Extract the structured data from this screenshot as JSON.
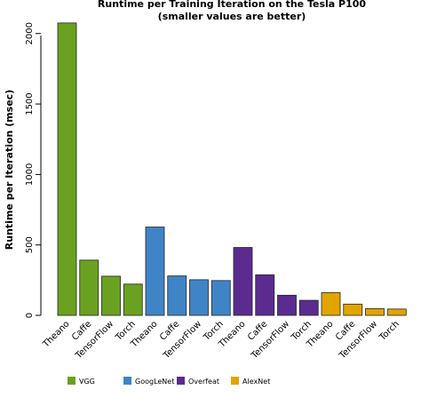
{
  "chart_data": {
    "type": "bar",
    "title": "Runtime per Training Iteration on the Tesla P100",
    "subtitle": "(smaller values are better)",
    "ylabel": "Runtime per Iteration (msec)",
    "xlabel": "",
    "ylim": [
      0,
      2100
    ],
    "yticks": [
      0,
      500,
      1000,
      1500,
      2000
    ],
    "grid": false,
    "legend_position": "bottom",
    "series": [
      {
        "name": "VGG",
        "color": "#6aa121",
        "categories": [
          "Theano",
          "Caffe",
          "TensorFlow",
          "Torch"
        ],
        "values": [
          2075,
          392,
          278,
          222
        ]
      },
      {
        "name": "GoogLeNet",
        "color": "#3f84c6",
        "categories": [
          "Theano",
          "Caffe",
          "TensorFlow",
          "Torch"
        ],
        "values": [
          627,
          280,
          253,
          247
        ]
      },
      {
        "name": "Overfeat",
        "color": "#5b2b90",
        "categories": [
          "Theano",
          "Caffe",
          "TensorFlow",
          "Torch"
        ],
        "values": [
          482,
          288,
          143,
          107
        ]
      },
      {
        "name": "AlexNet",
        "color": "#e1a500",
        "categories": [
          "Theano",
          "Caffe",
          "TensorFlow",
          "Torch"
        ],
        "values": [
          162,
          80,
          48,
          45
        ]
      }
    ]
  }
}
